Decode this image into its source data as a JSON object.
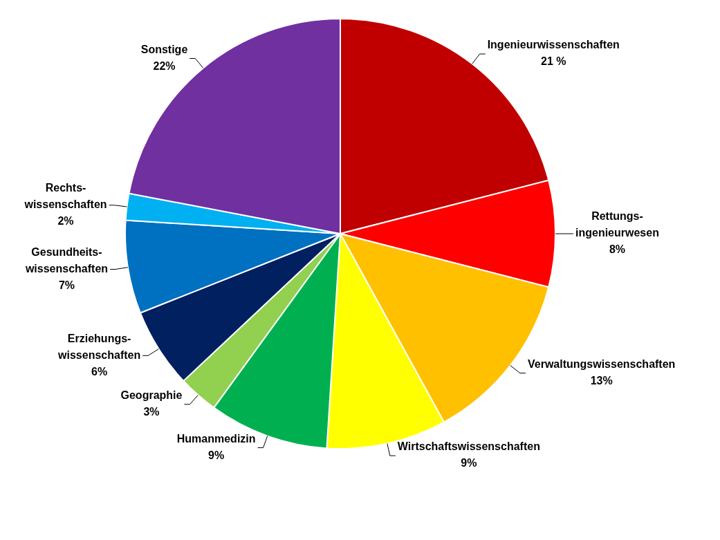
{
  "chart_data": {
    "type": "pie",
    "categories": [
      "Ingenieurwissenschaften",
      "Rettungs-\ningenieurwesen",
      "Verwaltungswissenschaften",
      "Wirtschaftswissenschaften",
      "Humanmedizin",
      "Geographie",
      "Erziehungs-\nwissenschaften",
      "Gesundheits-\nwissenschaften",
      "Rechts-\nwissenschaften",
      "Sonstige"
    ],
    "values": [
      21,
      8,
      13,
      9,
      9,
      3,
      6,
      7,
      2,
      22
    ],
    "value_labels": [
      "21 %",
      "8%",
      "13%",
      "9%",
      "9%",
      "3%",
      "6%",
      "7%",
      "2%",
      "22%"
    ],
    "colors": [
      "#c00000",
      "#ff0000",
      "#ffc000",
      "#ffff00",
      "#00b050",
      "#92d050",
      "#002060",
      "#0070c0",
      "#00b0f0",
      "#7030a0"
    ],
    "legend": false
  }
}
